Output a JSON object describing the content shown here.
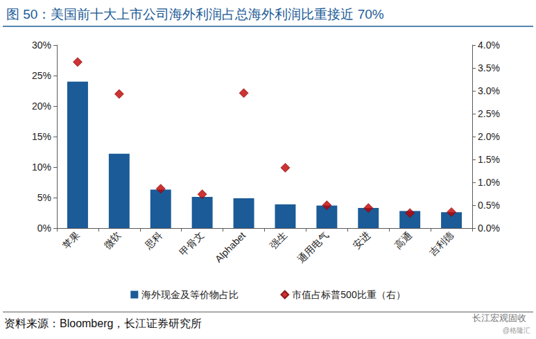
{
  "chart_data": {
    "type": "bar",
    "title": "图 50：美国前十大上市公司海外利润占总海外利润比重接近 70%",
    "source": "资料来源：Bloomberg，长江证券研究所",
    "watermark": [
      "长江宏观固收",
      "@格隆汇"
    ],
    "categories": [
      "苹果",
      "微软",
      "思科",
      "甲骨文",
      "Alphabet",
      "强生",
      "通用电气",
      "安进",
      "高通",
      "吉利德"
    ],
    "series": [
      {
        "name": "海外现金及等价物占比",
        "type": "bar",
        "color": "#1b5b97",
        "values": [
          24.0,
          12.2,
          6.3,
          5.1,
          4.9,
          3.9,
          3.7,
          3.3,
          2.8,
          2.6
        ]
      },
      {
        "name": "市值占标普500比重（右）",
        "type": "scatter",
        "marker": "diamond",
        "color": "#c00000",
        "axis": "y2",
        "values": [
          3.63,
          2.93,
          0.86,
          0.74,
          2.95,
          1.32,
          0.5,
          0.44,
          0.33,
          0.35
        ]
      }
    ],
    "ylim": [
      0,
      30
    ],
    "yticks": [
      {
        "value": 0,
        "label": "0%"
      },
      {
        "value": 5,
        "label": "5%"
      },
      {
        "value": 10,
        "label": "10%"
      },
      {
        "value": 15,
        "label": "15%"
      },
      {
        "value": 20,
        "label": "20%"
      },
      {
        "value": 25,
        "label": "25%"
      },
      {
        "value": 30,
        "label": "30%"
      }
    ],
    "y2lim": [
      0,
      4.0
    ],
    "y2ticks": [
      {
        "value": 0,
        "label": "0.0%"
      },
      {
        "value": 0.5,
        "label": "0.5%"
      },
      {
        "value": 1.0,
        "label": "1.0%"
      },
      {
        "value": 1.5,
        "label": "1.5%"
      },
      {
        "value": 2.0,
        "label": "2.0%"
      },
      {
        "value": 2.5,
        "label": "2.5%"
      },
      {
        "value": 3.0,
        "label": "3.0%"
      },
      {
        "value": 3.5,
        "label": "3.5%"
      },
      {
        "value": 4.0,
        "label": "4.0%"
      }
    ],
    "grid": false,
    "legend": "bottom"
  }
}
